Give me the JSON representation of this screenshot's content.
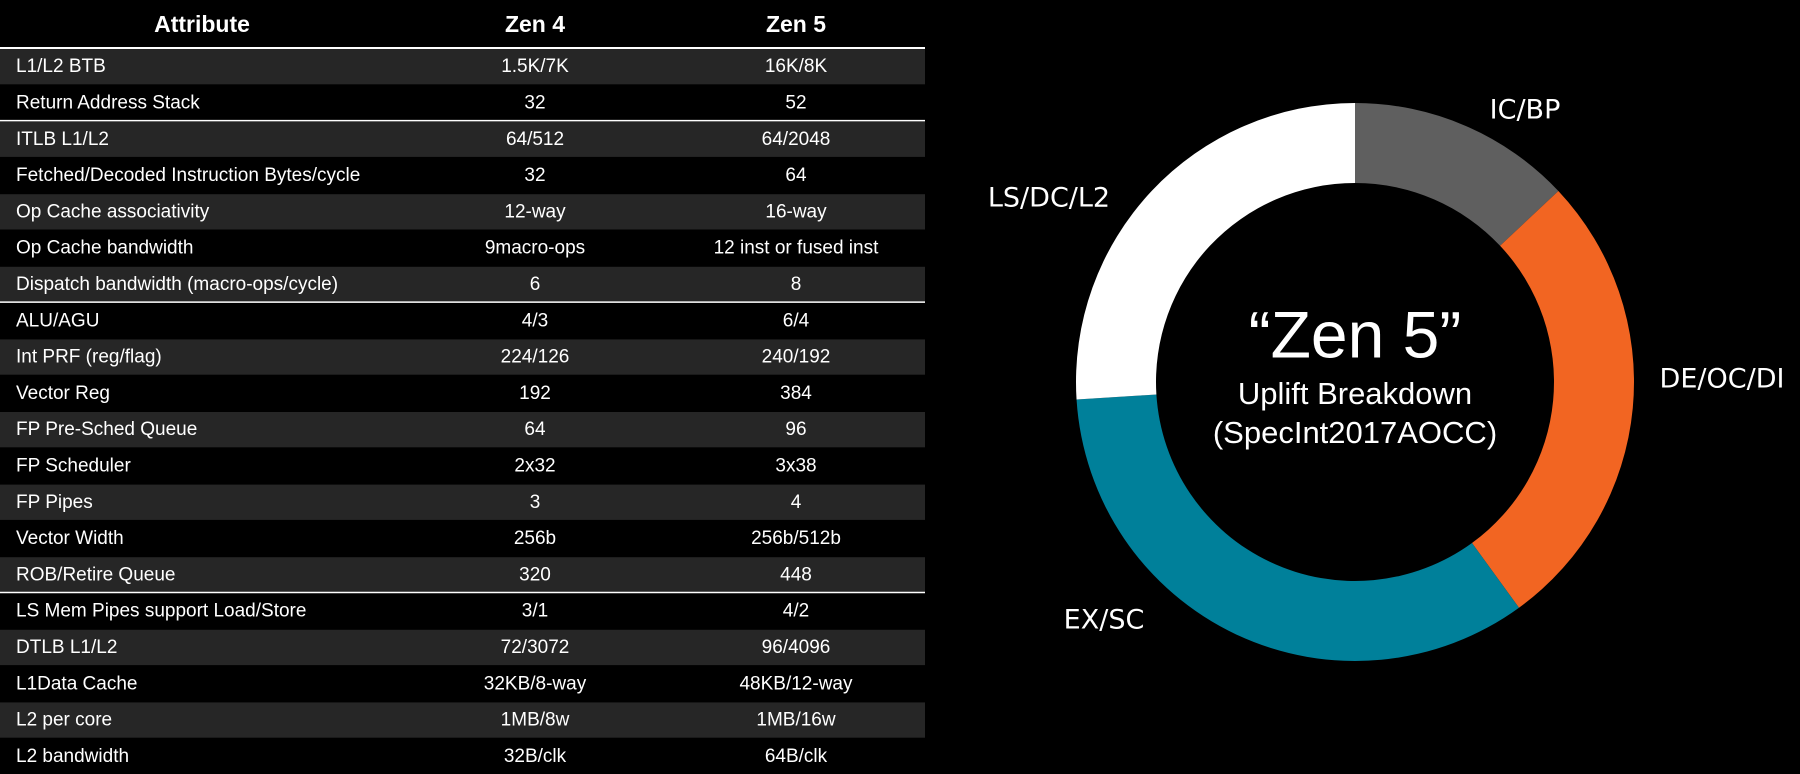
{
  "table": {
    "header": [
      "Attribute",
      "Zen 4",
      "Zen 5"
    ],
    "rows": [
      [
        "L1/L2 BTB",
        "1.5K/7K",
        "16K/8K"
      ],
      [
        "Return Address Stack",
        "32",
        "52"
      ],
      [
        "ITLB L1/L2",
        "64/512",
        "64/2048"
      ],
      [
        "Fetched/Decoded Instruction Bytes/cycle",
        "32",
        "64"
      ],
      [
        "Op Cache associativity",
        "12-way",
        "16-way"
      ],
      [
        "Op Cache bandwidth",
        "9macro-ops",
        "12 inst or fused inst"
      ],
      [
        "Dispatch bandwidth  (macro-ops/cycle)",
        "6",
        "8"
      ],
      [
        "ALU/AGU",
        "4/3",
        "6/4"
      ],
      [
        "Int PRF (reg/flag)",
        "224/126",
        "240/192"
      ],
      [
        "Vector Reg",
        "192",
        "384"
      ],
      [
        "FP Pre-Sched Queue",
        "64",
        "96"
      ],
      [
        "FP Scheduler",
        "2x32",
        "3x38"
      ],
      [
        "FP Pipes",
        "3",
        "4"
      ],
      [
        "Vector Width",
        "256b",
        "256b/512b"
      ],
      [
        "ROB/Retire Queue",
        "320",
        "448"
      ],
      [
        "LS Mem Pipes support Load/Store",
        "3/1",
        "4/2"
      ],
      [
        "DTLB L1/L2",
        "72/3072",
        "96/4096"
      ],
      [
        "L1Data Cache",
        "32KB/8-way",
        "48KB/12-way"
      ],
      [
        "L2 per core",
        "1MB/8w",
        "1MB/16w"
      ],
      [
        "L2 bandwidth",
        "32B/clk",
        "64B/clk"
      ]
    ]
  },
  "chart_data": {
    "type": "donut",
    "title": "“Zen 5”",
    "subtitle": [
      "Uplift Breakdown",
      "(SpecInt2017AOCC)"
    ],
    "categories": [
      "IC/BP",
      "DE/OC/DI",
      "EX/SC",
      "LS/DC/L2"
    ],
    "values": [
      13,
      27,
      34,
      26
    ],
    "colors": [
      "#5f5f5f",
      "#f26522",
      "#00809a",
      "#ffffff"
    ]
  }
}
